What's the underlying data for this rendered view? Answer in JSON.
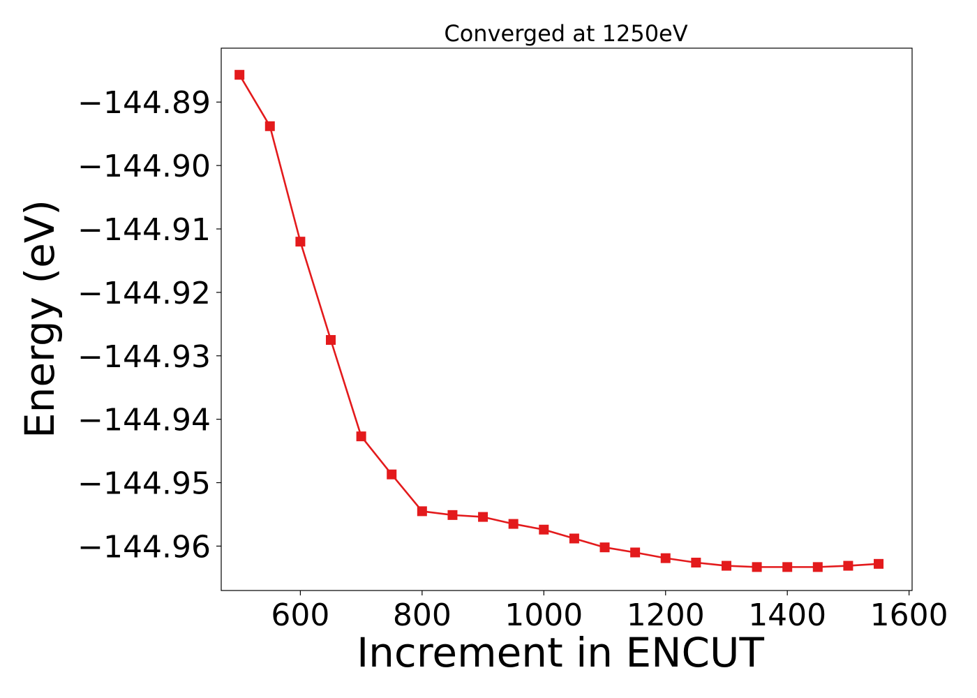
{
  "chart_data": {
    "type": "line",
    "title": "Converged at 1250eV",
    "xlabel": "Increment in ENCUT",
    "ylabel": "Energy (eV)",
    "xlim": [
      470,
      1605
    ],
    "ylim": [
      -144.967,
      -144.8815
    ],
    "xticks": [
      {
        "value": 600,
        "label": "600"
      },
      {
        "value": 800,
        "label": "800"
      },
      {
        "value": 1000,
        "label": "1000"
      },
      {
        "value": 1200,
        "label": "1200"
      },
      {
        "value": 1400,
        "label": "1400"
      },
      {
        "value": 1600,
        "label": "1600"
      }
    ],
    "yticks": [
      {
        "value": -144.89,
        "label": "−144.89"
      },
      {
        "value": -144.9,
        "label": "−144.90"
      },
      {
        "value": -144.91,
        "label": "−144.91"
      },
      {
        "value": -144.92,
        "label": "−144.92"
      },
      {
        "value": -144.93,
        "label": "−144.93"
      },
      {
        "value": -144.94,
        "label": "−144.94"
      },
      {
        "value": -144.95,
        "label": "−144.95"
      },
      {
        "value": -144.96,
        "label": "−144.96"
      }
    ],
    "grid": false,
    "legend": false,
    "series": [
      {
        "color": "#e31a1c",
        "marker": "square",
        "x": [
          500,
          550,
          600,
          650,
          700,
          750,
          800,
          850,
          900,
          950,
          1000,
          1050,
          1100,
          1150,
          1200,
          1250,
          1300,
          1350,
          1400,
          1450,
          1500,
          1550
        ],
        "y": [
          -144.8857,
          -144.8938,
          -144.912,
          -144.9275,
          -144.9427,
          -144.9487,
          -144.9545,
          -144.9551,
          -144.9554,
          -144.9565,
          -144.9574,
          -144.9588,
          -144.9602,
          -144.961,
          -144.9619,
          -144.9626,
          -144.9631,
          -144.9633,
          -144.9633,
          -144.9633,
          -144.9631,
          -144.9628
        ]
      }
    ]
  }
}
